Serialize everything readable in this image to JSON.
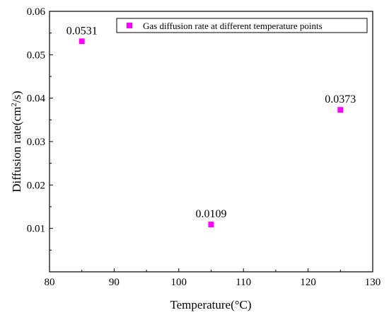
{
  "chart_data": {
    "type": "scatter",
    "title": "",
    "xlabel": "Temperature(°C)",
    "ylabel_pre": "Diffusion rate(cm",
    "ylabel_sup": "2",
    "ylabel_post": "/s)",
    "xlim": [
      80,
      130
    ],
    "ylim": [
      0,
      0.06
    ],
    "xticks": [
      80,
      90,
      100,
      110,
      120,
      130
    ],
    "yticks": [
      0.01,
      0.02,
      0.03,
      0.04,
      0.05,
      0.06
    ],
    "xtick_labels": [
      "80",
      "90",
      "100",
      "110",
      "120",
      "130"
    ],
    "ytick_labels": [
      "0.01",
      "0.02",
      "0.03",
      "0.04",
      "0.05",
      "0.06"
    ],
    "grid": false,
    "legend_position": "top-right",
    "series": [
      {
        "name": "Gas diffusion rate at different temperature points",
        "color": "#ff00ff",
        "marker": "square",
        "x": [
          85,
          105,
          125
        ],
        "y": [
          0.0531,
          0.0109,
          0.0373
        ],
        "labels": [
          "0.0531",
          "0.0109",
          "0.0373"
        ]
      }
    ]
  }
}
